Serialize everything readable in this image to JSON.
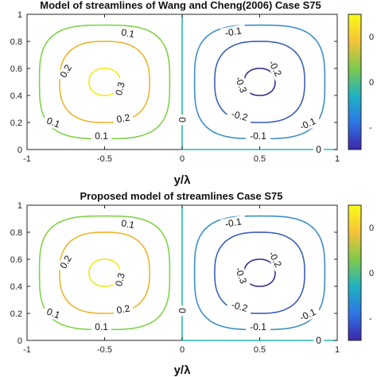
{
  "chart_data": [
    {
      "type": "contour",
      "title": "Model of streamlines of Wang and Cheng(2006) Case S75",
      "xlabel": "y/λ",
      "ylabel": "",
      "xlim": [
        -1,
        1
      ],
      "ylim": [
        0,
        1
      ],
      "x_ticks": [
        "-1",
        "-0.5",
        "0",
        "0.5",
        "1"
      ],
      "y_ticks": [
        "0",
        "0.2",
        "0.4",
        "0.6",
        "0.8",
        "1"
      ],
      "contour_levels": [
        {
          "level": 0.1,
          "label": "0.1",
          "color": "#7ed348"
        },
        {
          "level": 0.2,
          "label": "0.2",
          "color": "#eab52d"
        },
        {
          "level": 0.3,
          "label": "0.3",
          "color": "#f2e81c"
        },
        {
          "level": -0.1,
          "label": "-0.1",
          "color": "#3d8fc7"
        },
        {
          "level": -0.2,
          "label": "-0.2",
          "color": "#3b5fb8"
        },
        {
          "level": -0.3,
          "label": "-0.3",
          "color": "#3a2a8e"
        },
        {
          "level": 0,
          "label": "0",
          "color": "#28b8a8"
        }
      ]
    },
    {
      "type": "contour",
      "title": "Proposed model of streamlines Case S75",
      "xlabel": "y/λ",
      "ylabel": "",
      "xlim": [
        -1,
        1
      ],
      "ylim": [
        0,
        1
      ],
      "x_ticks": [
        "-1",
        "-0.5",
        "0",
        "0.5",
        "1"
      ],
      "y_ticks": [
        "0",
        "0.2",
        "0.4",
        "0.6",
        "0.8",
        "1"
      ],
      "contour_levels": [
        {
          "level": 0.1,
          "label": "0.1",
          "color": "#7ed348"
        },
        {
          "level": 0.2,
          "label": "0.2",
          "color": "#eab52d"
        },
        {
          "level": 0.3,
          "label": "0.3",
          "color": "#f2e81c"
        },
        {
          "level": -0.1,
          "label": "-0.1",
          "color": "#3d8fc7"
        },
        {
          "level": -0.2,
          "label": "-0.2",
          "color": "#3b5fb8"
        },
        {
          "level": -0.3,
          "label": "-0.3",
          "color": "#3a2a8e"
        },
        {
          "level": 0,
          "label": "0",
          "color": "#28b8a8"
        }
      ]
    }
  ],
  "colorbar": {
    "colors": [
      "#3d26a8",
      "#2c75e6",
      "#1fb3c0",
      "#7ec94a",
      "#f5c33a",
      "#f9fb15"
    ],
    "tick_fragments": [
      "0",
      "0",
      "-"
    ]
  }
}
